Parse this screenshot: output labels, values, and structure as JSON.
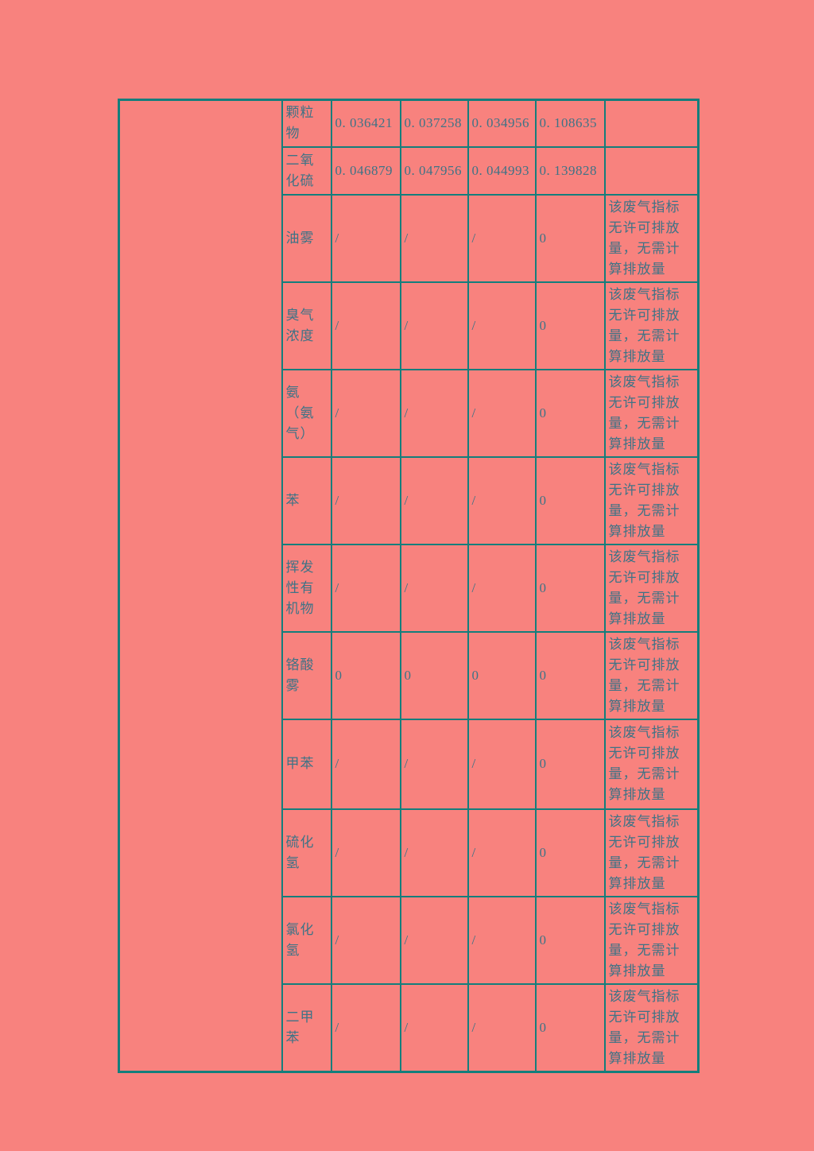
{
  "page": {
    "background_color": "#f8827e",
    "table_border_color": "#147e7c",
    "text_color": "#3e7386"
  },
  "table": {
    "merged_left_cell": "",
    "no_permit_remark": "该废气指标无许可排放量，无需计算排放量",
    "rows": [
      {
        "pollutant": "颗粒物",
        "values": [
          "0. 036421",
          "0. 037258",
          "0. 034956",
          "0. 108635"
        ],
        "remark": ""
      },
      {
        "pollutant": "二氧化硫",
        "values": [
          "0. 046879",
          "0. 047956",
          "0. 044993",
          "0. 139828"
        ],
        "remark": ""
      },
      {
        "pollutant": "油雾",
        "values": [
          "/",
          "/",
          "/",
          "0"
        ],
        "remark": "该废气指标无许可排放量，无需计算排放量"
      },
      {
        "pollutant": "臭气浓度",
        "values": [
          "/",
          "/",
          "/",
          "0"
        ],
        "remark": "该废气指标无许可排放量，无需计算排放量"
      },
      {
        "pollutant": "氨（氨气）",
        "values": [
          "/",
          "/",
          "/",
          "0"
        ],
        "remark": "该废气指标无许可排放量，无需计算排放量"
      },
      {
        "pollutant": "苯",
        "values": [
          "/",
          "/",
          "/",
          "0"
        ],
        "remark": "该废气指标无许可排放量，无需计算排放量"
      },
      {
        "pollutant": "挥发性有机物",
        "values": [
          "/",
          "/",
          "/",
          "0"
        ],
        "remark": "该废气指标无许可排放量，无需计算排放量"
      },
      {
        "pollutant": "铬酸雾",
        "values": [
          "0",
          "0",
          "0",
          "0"
        ],
        "remark": "该废气指标无许可排放量，无需计算排放量"
      },
      {
        "pollutant": "甲苯",
        "values": [
          "/",
          "/",
          "/",
          "0"
        ],
        "remark": "该废气指标无许可排放量，无需计算排放量"
      },
      {
        "pollutant": "硫化氢",
        "values": [
          "/",
          "/",
          "/",
          "0"
        ],
        "remark": "该废气指标无许可排放量，无需计算排放量"
      },
      {
        "pollutant": "氯化氢",
        "values": [
          "/",
          "/",
          "/",
          "0"
        ],
        "remark": "该废气指标无许可排放量，无需计算排放量"
      },
      {
        "pollutant": "二甲苯",
        "values": [
          "/",
          "/",
          "/",
          "0"
        ],
        "remark": "该废气指标无许可排放量，无需计算排放量"
      }
    ]
  }
}
